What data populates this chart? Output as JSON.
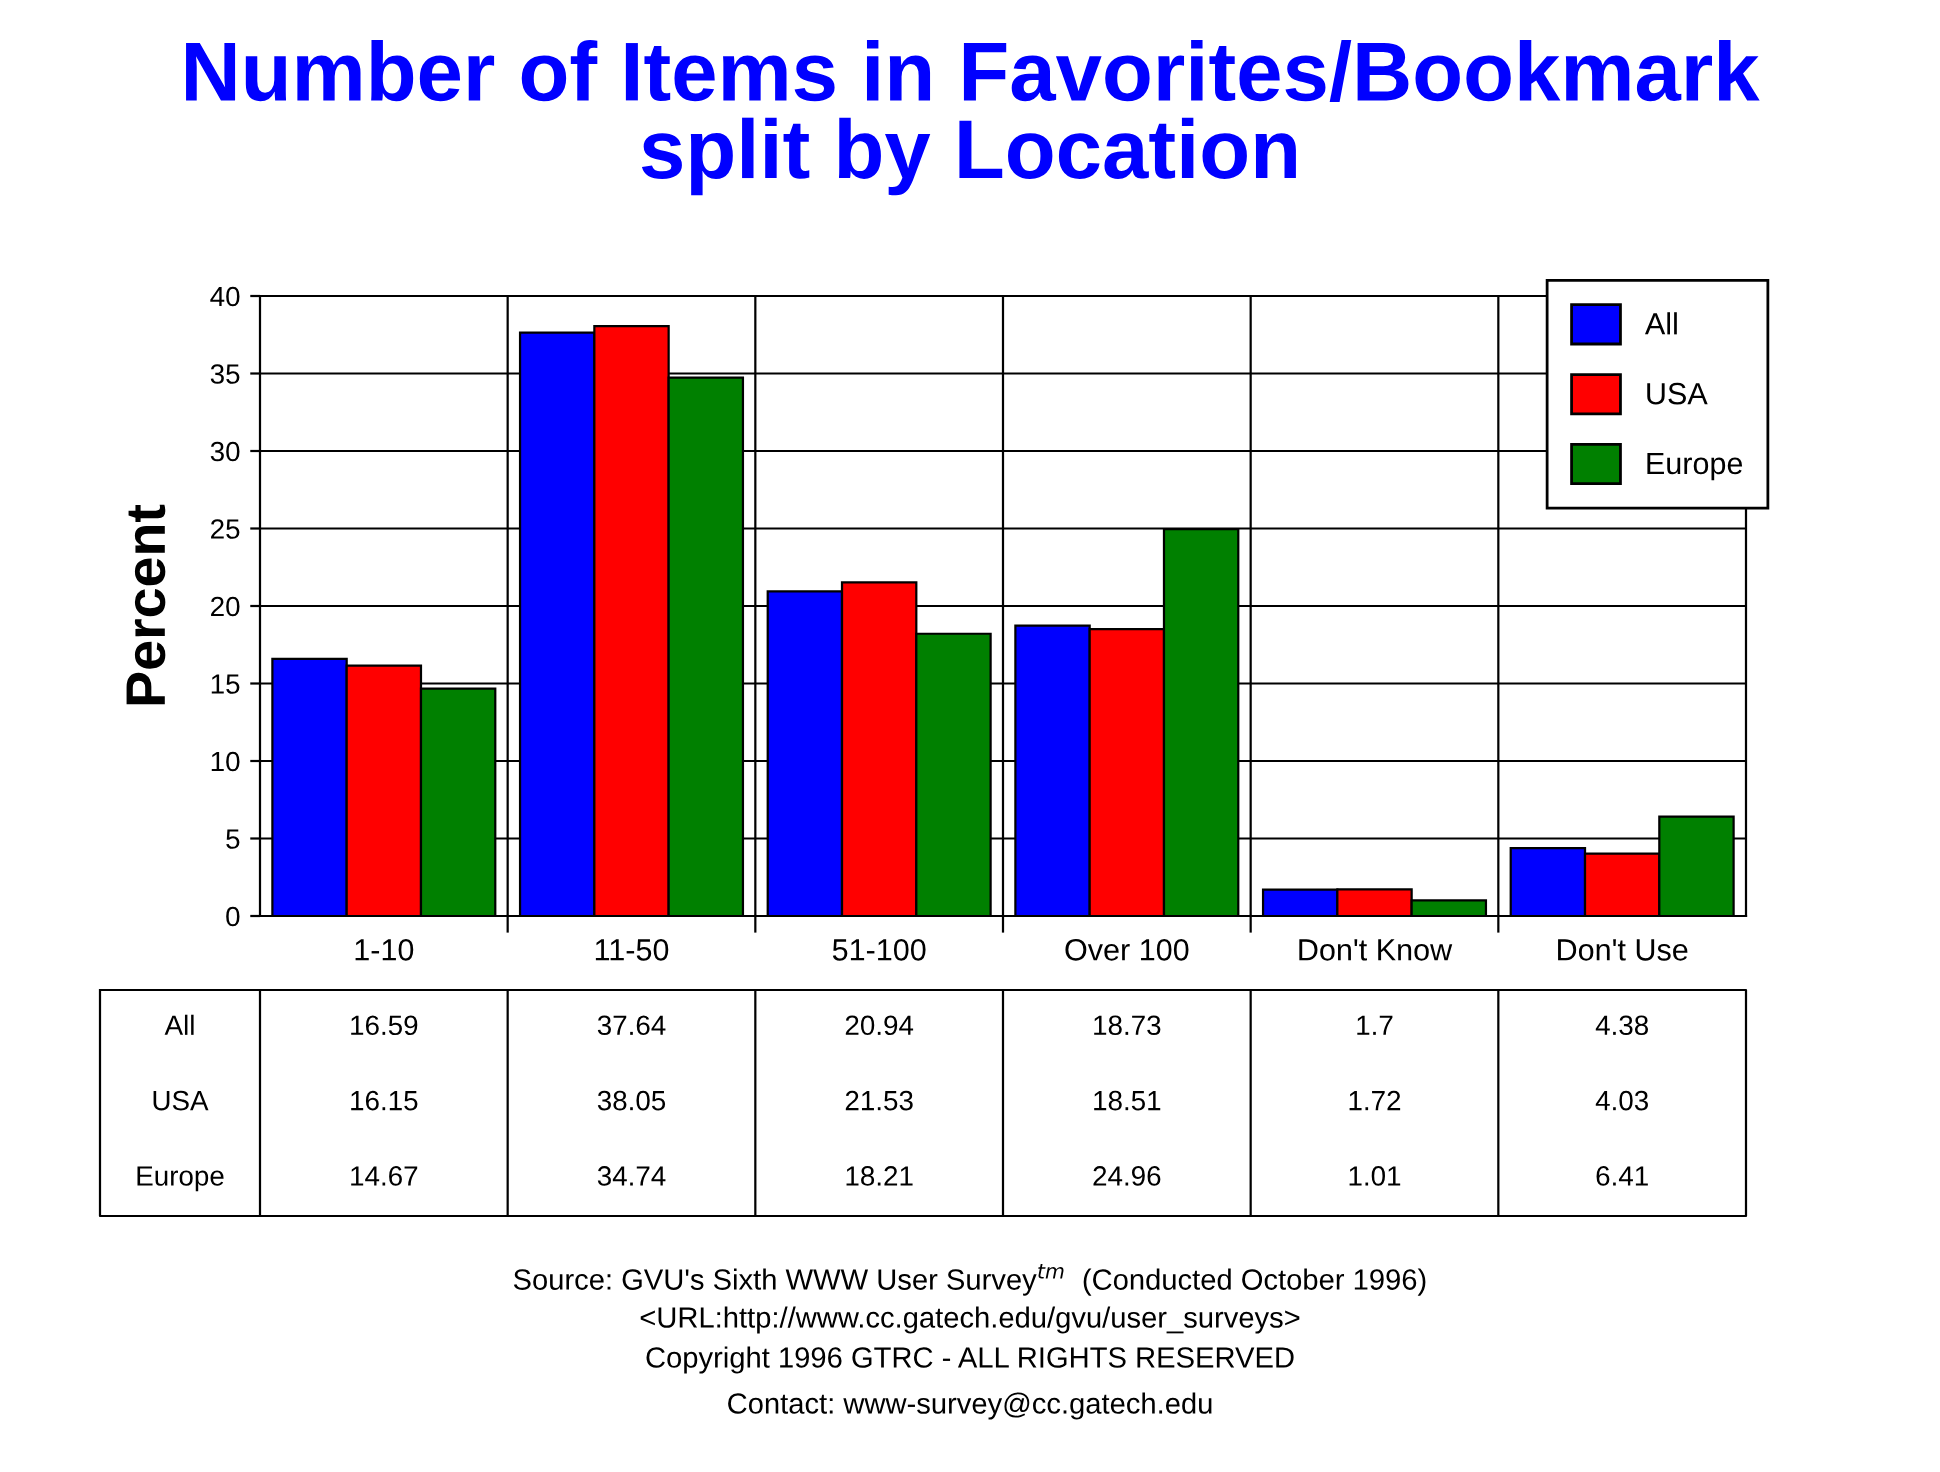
{
  "chart_data": {
    "type": "bar",
    "title": "Number of Items in Favorites/Bookmark\nsplit by Location",
    "ylabel": "Percent",
    "categories": [
      "1-10",
      "11-50",
      "51-100",
      "Over 100",
      "Don't Know",
      "Don't Use"
    ],
    "series": [
      {
        "name": "All",
        "color": "#0000ff",
        "values": [
          16.59,
          37.64,
          20.94,
          18.73,
          1.7,
          4.38
        ]
      },
      {
        "name": "USA",
        "color": "#ff0000",
        "values": [
          16.15,
          38.05,
          21.53,
          18.51,
          1.72,
          4.03
        ]
      },
      {
        "name": "Europe",
        "color": "#008000",
        "values": [
          14.67,
          34.74,
          18.21,
          24.96,
          1.01,
          6.41
        ]
      }
    ],
    "ylim": [
      0,
      40
    ],
    "yticks": [
      0,
      5,
      10,
      15,
      20,
      25,
      30,
      35,
      40
    ],
    "grid": true,
    "legend": "top right",
    "data_labels": true,
    "annotations": [
      "Source: GVU's Sixth WWW User Survey$^{tm}$  (Conducted October 1996)",
      "<URL:http://www.cc.gatech.edu/gvu/user_surveys>",
      "Copyright 1996 GTRC - ALL RIGHTS RESERVED",
      "Contact: www-survey@cc.gatech.edu"
    ]
  }
}
